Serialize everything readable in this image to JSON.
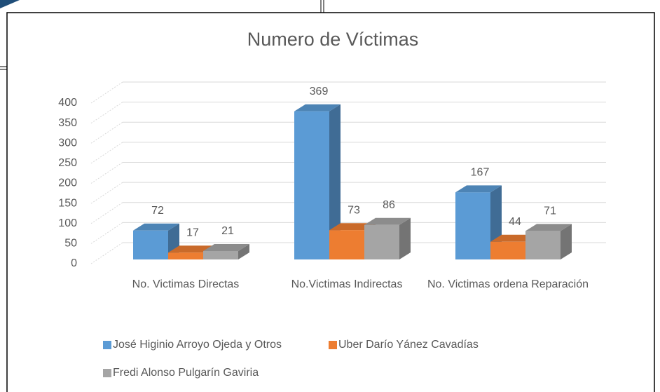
{
  "chart_data": {
    "type": "bar3d",
    "title": "Numero de Víctimas",
    "categories": [
      "No. Victimas Directas",
      "No.Victimas Indirectas",
      "No. Victimas ordena Reparación"
    ],
    "series": [
      {
        "name": "José Higinio Arroyo Ojeda y Otros",
        "color": "#5b9bd5",
        "values": [
          72,
          369,
          167
        ]
      },
      {
        "name": "Uber Darío Yánez Cavadías",
        "color": "#ed7d31",
        "values": [
          17,
          73,
          44
        ]
      },
      {
        "name": "Fredi Alonso Pulgarín Gaviria",
        "color": "#a5a5a5",
        "values": [
          21,
          86,
          71
        ]
      }
    ],
    "ylim": [
      0,
      400
    ],
    "yticks": [
      0,
      50,
      100,
      150,
      200,
      250,
      300,
      350,
      400
    ],
    "grid": true
  }
}
